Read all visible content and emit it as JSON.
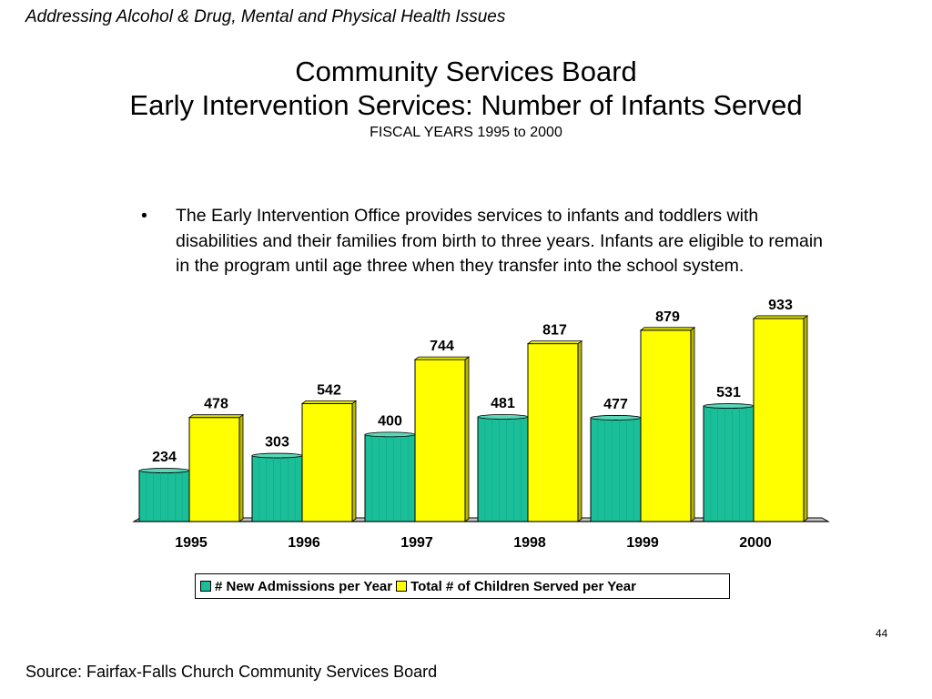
{
  "header": {
    "italic_title": "Addressing Alcohol & Drug, Mental and Physical Health Issues"
  },
  "title": {
    "line1": "Community Services Board",
    "line2": "Early Intervention Services: Number of Infants Served",
    "subtitle": "FISCAL YEARS 1995 to 2000"
  },
  "bullet": {
    "glyph": "•",
    "text": "The Early Intervention Office provides services to infants and toddlers with disabilities and their families from birth to three years.  Infants are eligible to remain in the program until age three when they transfer into the school system."
  },
  "chart_data": {
    "type": "bar",
    "categories": [
      "1995",
      "1996",
      "1997",
      "1998",
      "1999",
      "2000"
    ],
    "series": [
      {
        "name": "# New Admissions per Year",
        "values": [
          234,
          303,
          400,
          481,
          477,
          531
        ],
        "color": "#1abf99"
      },
      {
        "name": "Total # of Children Served per Year",
        "values": [
          478,
          542,
          744,
          817,
          879,
          933
        ],
        "color": "#ffff00"
      }
    ],
    "data_labels": true,
    "grid": false,
    "legend_position": "bottom"
  },
  "page_number": "44",
  "source": "Source:  Fairfax-Falls Church Community Services Board"
}
